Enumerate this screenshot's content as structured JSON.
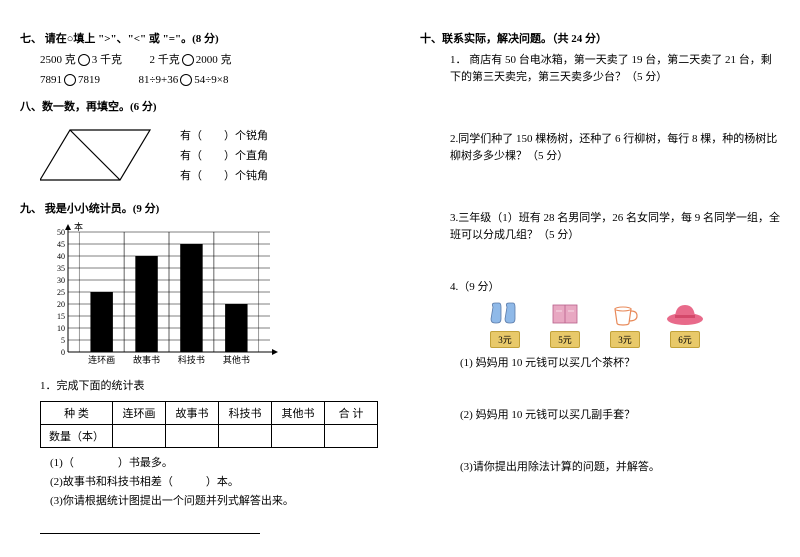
{
  "left": {
    "s7": {
      "title": "七、 请在○填上 \">\"、\"<\" 或 \"=\"。(8 分)",
      "r1a": "2500 克",
      "r1b": "3 千克",
      "r1c": "2 千克",
      "r1d": "2000 克",
      "r2a": "7891",
      "r2b": "7819",
      "r2c": "81÷9+36",
      "r2d": "54÷9×8"
    },
    "s8": {
      "title": "八、数一数，再填空。(6 分)",
      "lines": [
        "有（　　）个锐角",
        "有（　　）个直角",
        "有（　　）个钝角"
      ]
    },
    "s9": {
      "title": "九、 我是小小统计员。(9 分)",
      "ylabel": "本",
      "ymax": 50,
      "ystep": 5,
      "categories": [
        "连环画",
        "故事书",
        "科技书",
        "其他书"
      ],
      "values": [
        25,
        40,
        45,
        20
      ],
      "bar_color": "#000000",
      "grid_color": "#000000",
      "t1": "1．完成下面的统计表",
      "table_headers": [
        "种 类",
        "连环画",
        "故事书",
        "科技书",
        "其他书",
        "合 计"
      ],
      "table_row_label": "数量（本）",
      "q1": "(1)（　　　　）书最多。",
      "q2": "(2)故事书和科技书相差（　　　）本。",
      "q3": "(3)你请根据统计图提出一个问题并列式解答出来。"
    }
  },
  "right": {
    "s10": {
      "title": "十、联系实际，解决问题。（共 24 分）",
      "q1": "1． 商店有 50 台电冰箱，第一天卖了 19 台，第二天卖了 21 台，剩下的第三天卖完，第三天卖多少台？（5 分）",
      "q2": "2.同学们种了 150 棵杨树，还种了 6 行柳树，每行 8 棵，种的杨树比柳树多多少棵？（5 分）",
      "q3": "3.三年级（1）班有 28 名男同学，26 名女同学，每 9 名同学一组，全班可以分成几组？（5 分）",
      "q4": {
        "title": "4.（9 分）",
        "items": [
          {
            "label": "手套",
            "price": "3元",
            "color": "#8fb9e8"
          },
          {
            "label": "书",
            "price": "5元",
            "color": "#e8a8c2"
          },
          {
            "label": "茶杯",
            "price": "3元",
            "color": "#e88a5a"
          },
          {
            "label": "帽子",
            "price": "6元",
            "color": "#e86a8a"
          }
        ],
        "sub1": "(1) 妈妈用 10 元钱可以买几个茶杯？",
        "sub2": "(2) 妈妈用 10 元钱可以买几副手套？",
        "sub3": "(3)请你提出用除法计算的问题，并解答。"
      }
    }
  }
}
